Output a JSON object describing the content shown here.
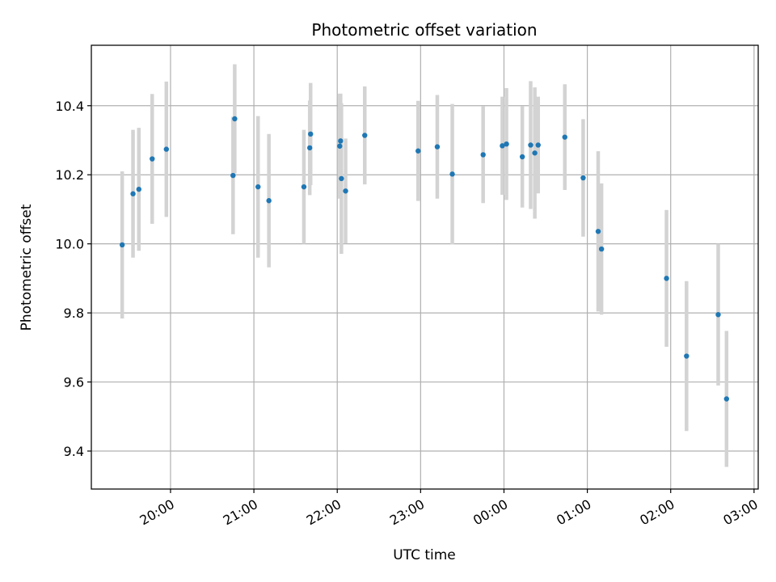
{
  "chart_data": {
    "type": "scatter",
    "title": "Photometric offset variation",
    "xlabel": "UTC time",
    "ylabel": "Photometric offset",
    "x_axis_kind": "time (UTC, hours; values > 24 are after midnight)",
    "xlim": [
      19.05,
      27.05
    ],
    "ylim": [
      9.29,
      10.575
    ],
    "grid": true,
    "x_ticks": [
      20,
      21,
      22,
      23,
      24,
      25,
      26,
      27
    ],
    "x_tick_labels": [
      "20:00",
      "21:00",
      "22:00",
      "23:00",
      "00:00",
      "01:00",
      "02:00",
      "03:00"
    ],
    "y_ticks": [
      9.4,
      9.6,
      9.8,
      10.0,
      10.2,
      10.4
    ],
    "y_tick_labels": [
      "9.4",
      "9.6",
      "9.8",
      "10.0",
      "10.2",
      "10.4"
    ],
    "series": [
      {
        "marker_color": "#1f77b4",
        "errorbar_color": "#d3d3d3",
        "points": [
          {
            "x": 19.42,
            "y": 9.997,
            "err": 0.213
          },
          {
            "x": 19.55,
            "y": 10.145,
            "err": 0.185
          },
          {
            "x": 19.62,
            "y": 10.158,
            "err": 0.178
          },
          {
            "x": 19.78,
            "y": 10.246,
            "err": 0.188
          },
          {
            "x": 19.95,
            "y": 10.274,
            "err": 0.196
          },
          {
            "x": 20.77,
            "y": 10.362,
            "err": 0.158
          },
          {
            "x": 20.75,
            "y": 10.198,
            "err": 0.17
          },
          {
            "x": 21.05,
            "y": 10.165,
            "err": 0.205
          },
          {
            "x": 21.18,
            "y": 10.125,
            "err": 0.193
          },
          {
            "x": 21.6,
            "y": 10.165,
            "err": 0.165
          },
          {
            "x": 21.67,
            "y": 10.278,
            "err": 0.137
          },
          {
            "x": 21.68,
            "y": 10.318,
            "err": 0.148
          },
          {
            "x": 22.03,
            "y": 10.283,
            "err": 0.152
          },
          {
            "x": 22.04,
            "y": 10.298,
            "err": 0.137
          },
          {
            "x": 22.05,
            "y": 10.189,
            "err": 0.218
          },
          {
            "x": 22.1,
            "y": 10.153,
            "err": 0.152
          },
          {
            "x": 22.33,
            "y": 10.314,
            "err": 0.142
          },
          {
            "x": 22.97,
            "y": 10.269,
            "err": 0.145
          },
          {
            "x": 23.2,
            "y": 10.281,
            "err": 0.15
          },
          {
            "x": 23.38,
            "y": 10.202,
            "err": 0.203
          },
          {
            "x": 23.75,
            "y": 10.258,
            "err": 0.14
          },
          {
            "x": 23.98,
            "y": 10.284,
            "err": 0.142
          },
          {
            "x": 24.03,
            "y": 10.289,
            "err": 0.162
          },
          {
            "x": 24.22,
            "y": 10.252,
            "err": 0.147
          },
          {
            "x": 24.32,
            "y": 10.286,
            "err": 0.185
          },
          {
            "x": 24.37,
            "y": 10.263,
            "err": 0.19
          },
          {
            "x": 24.41,
            "y": 10.286,
            "err": 0.14
          },
          {
            "x": 24.73,
            "y": 10.309,
            "err": 0.153
          },
          {
            "x": 24.95,
            "y": 10.191,
            "err": 0.17
          },
          {
            "x": 25.13,
            "y": 10.036,
            "err": 0.232
          },
          {
            "x": 25.17,
            "y": 9.985,
            "err": 0.19
          },
          {
            "x": 25.95,
            "y": 9.9,
            "err": 0.198
          },
          {
            "x": 26.19,
            "y": 9.675,
            "err": 0.217
          },
          {
            "x": 26.57,
            "y": 9.795,
            "err": 0.205
          },
          {
            "x": 26.67,
            "y": 9.551,
            "err": 0.197
          }
        ]
      }
    ]
  }
}
